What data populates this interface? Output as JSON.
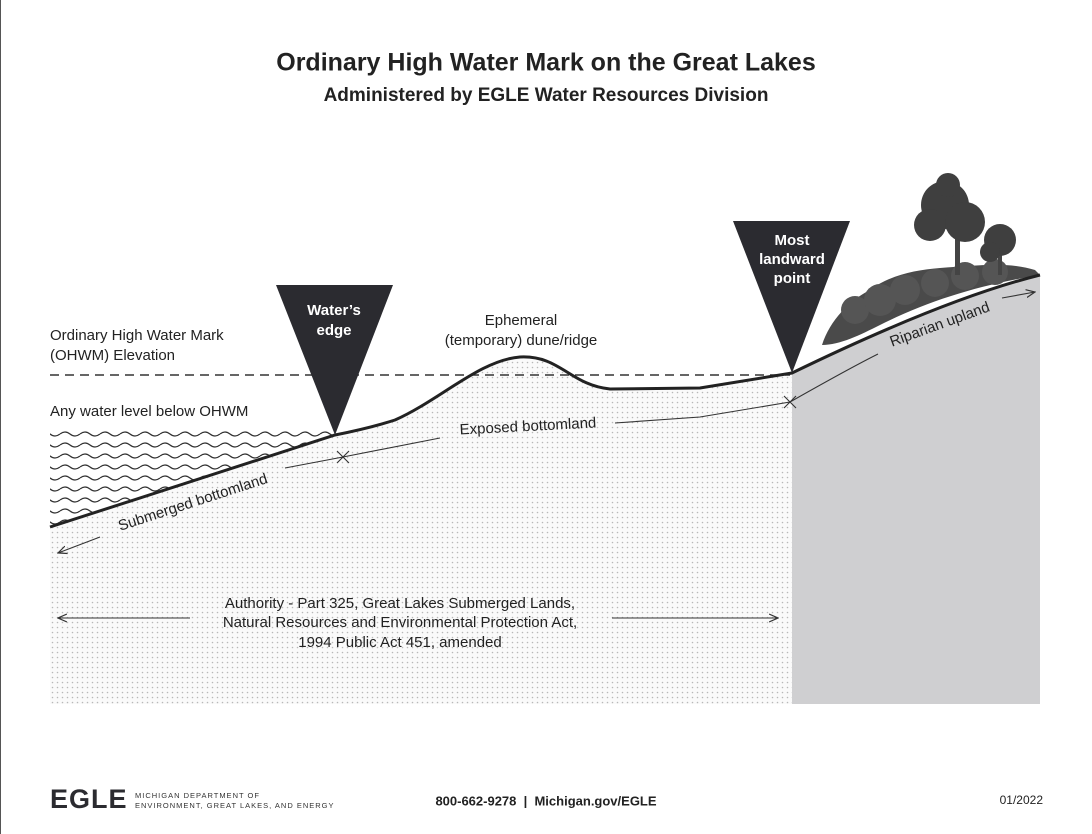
{
  "header": {
    "title": "Ordinary High Water Mark on the Great Lakes",
    "subtitle": "Administered by EGLE Water Resources Division"
  },
  "labels": {
    "ohwm": [
      "Ordinary High Water Mark",
      "(OHWM) Elevation"
    ],
    "water_level": "Any water level below OHWM",
    "waters_edge": [
      "Water’s",
      "edge"
    ],
    "dune": [
      "Ephemeral",
      "(temporary) dune/ridge"
    ],
    "landward": [
      "Most",
      "landward",
      "point"
    ],
    "submerged": "Submerged bottomland",
    "exposed": "Exposed bottomland",
    "riparian": "Riparian upland",
    "authority": [
      "Authority - Part 325, Great Lakes Submerged Lands,",
      "Natural Resources and Environmental Protection Act,",
      "1994 Public Act 451, amended"
    ]
  },
  "footer": {
    "logo": "EGLE",
    "department": [
      "MICHIGAN DEPARTMENT OF",
      "ENVIRONMENT, GREAT LAKES, AND ENERGY"
    ],
    "contact": "800-662-9278  |  Michigan.gov/EGLE",
    "date": "01/2022"
  }
}
